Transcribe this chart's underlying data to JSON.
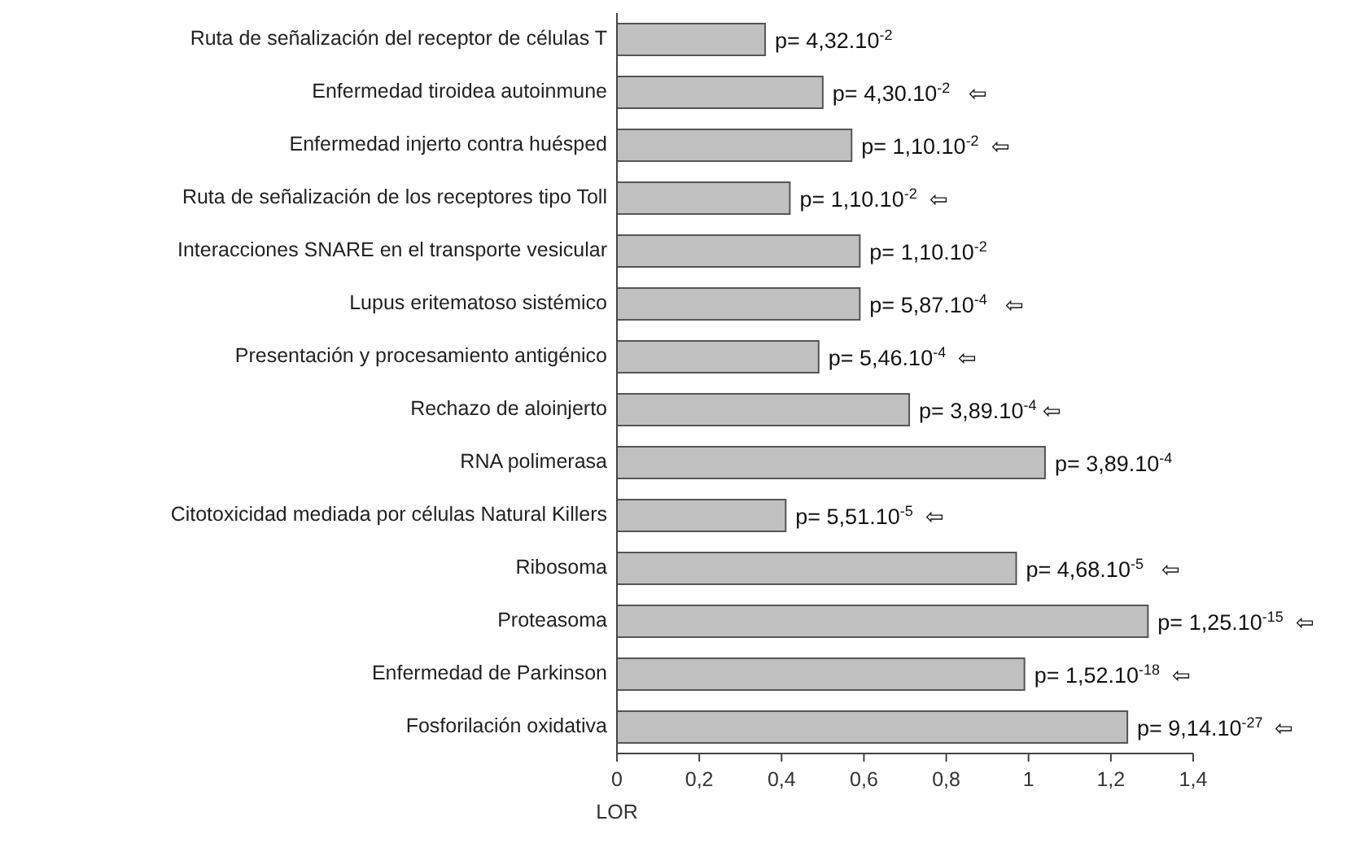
{
  "chart_data": {
    "type": "bar",
    "orientation": "horizontal",
    "xlabel": "LOR",
    "categories": [
      "Ruta de señalización del receptor de células T",
      "Enfermedad tiroidea autoinmune",
      "Enfermedad injerto contra huésped",
      "Ruta de señalización de los receptores tipo Toll",
      "Interacciones SNARE en el transporte vesicular",
      "Lupus eritematoso sistémico",
      "Presentación y procesamiento antigénico",
      "Rechazo de aloinjerto",
      "RNA polimerasa",
      "Citotoxicidad mediada por células Natural Killers",
      "Ribosoma",
      "Proteasoma",
      "Enfermedad de Parkinson",
      "Fosforilación oxidativa"
    ],
    "values": [
      0.36,
      0.5,
      0.57,
      0.42,
      0.59,
      0.59,
      0.49,
      0.71,
      1.04,
      0.41,
      0.97,
      1.29,
      0.99,
      1.24
    ],
    "value_labels": [
      "p= 4,32.10$^{-2}$",
      "p= 4,30.10$^{-2}$   ⇦",
      "p= 1,10.10$^{-2}$  ⇦",
      "p= 1,10.10$^{-2}$  ⇦",
      "p= 1,10.10$^{-2}$",
      "p= 5,87.10$^{-4}$   ⇦",
      "p= 5,46.10$^{-4}$  ⇦",
      "p= 3,89.10$^{-4}$ ⇦",
      "p= 3,89.10$^{-4}$",
      "p= 5,51.10$^{-5}$  ⇦",
      "p= 4,68.10$^{-5}$   ⇦",
      "p= 1,25.10$^{-15}$  ⇦",
      "p= 1,52.10$^{-18}$  ⇦",
      "p= 9,14.10$^{-27}$  ⇦"
    ],
    "color": "#c0c0c0",
    "xlim": [
      0,
      1.4
    ],
    "xticks": [
      0,
      {
        "value": 0.2,
        "label": "0,2"
      },
      {
        "value": 0.4,
        "label": "0,4"
      },
      {
        "value": 0.6,
        "label": "0,6"
      },
      {
        "value": 0.8,
        "label": "0,8"
      },
      1,
      {
        "value": 1.2,
        "label": "1,2"
      },
      {
        "value": 1.4,
        "label": "1,4"
      }
    ],
    "grid": false
  }
}
